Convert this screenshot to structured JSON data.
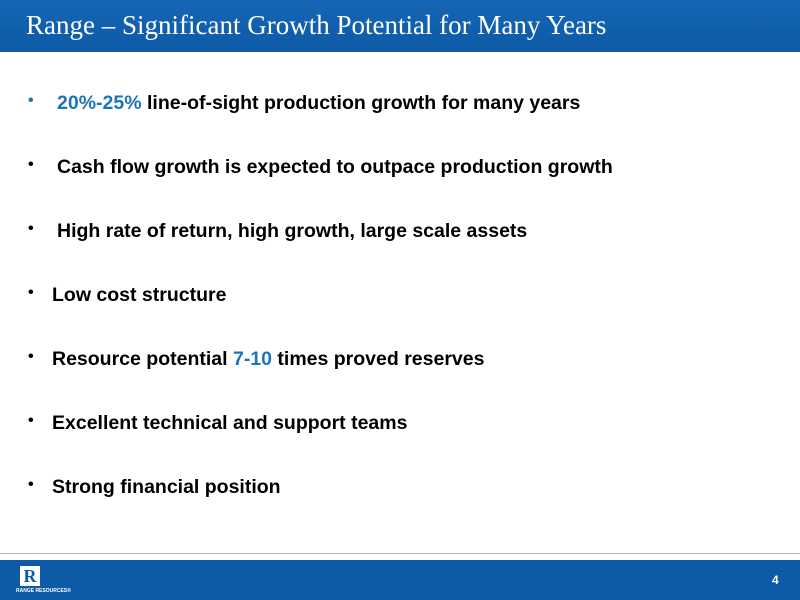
{
  "header": {
    "title": "Range – Significant Growth Potential for Many Years"
  },
  "bullets": [
    [
      {
        "text": "20%-25%",
        "color": "#1a75bb"
      },
      {
        "text": " line-of-sight production growth for many years",
        "color": "#000000"
      }
    ],
    [
      {
        "text": "Cash flow growth is expected to outpace production growth",
        "color": "#000000"
      }
    ],
    [
      {
        "text": "High rate of return, high growth, large scale assets",
        "color": "#000000"
      }
    ],
    [
      {
        "text": "Low cost structure",
        "color": "#000000"
      }
    ],
    [
      {
        "text": "Resource potential ",
        "color": "#000000"
      },
      {
        "text": "7-10",
        "color": "#1a75bb"
      },
      {
        "text": " times proved reserves",
        "color": "#000000"
      }
    ],
    [
      {
        "text": "Excellent technical and support teams",
        "color": "#000000"
      }
    ],
    [
      {
        "text": "Strong financial position",
        "color": "#000000"
      }
    ]
  ],
  "footer": {
    "logo": "RANGE RESOURCES®",
    "page_number": "4"
  }
}
